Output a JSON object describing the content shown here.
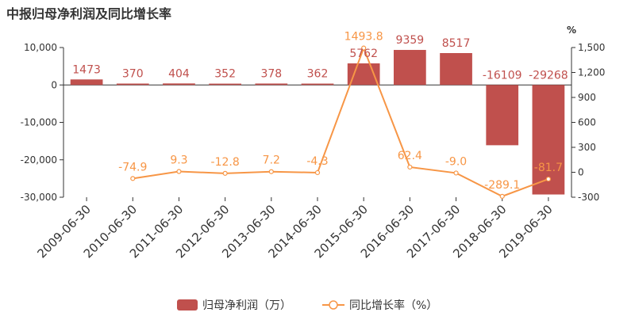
{
  "chart_data": {
    "type": "bar",
    "title": "中报归母净利润及同比增长率",
    "categories": [
      "2009-06-30",
      "2010-06-30",
      "2011-06-30",
      "2012-06-30",
      "2013-06-30",
      "2014-06-30",
      "2015-06-30",
      "2016-06-30",
      "2017-06-30",
      "2018-06-30",
      "2019-06-30"
    ],
    "series": [
      {
        "name": "归母净利润（万）",
        "type": "bar",
        "axis": "left",
        "values": [
          1473,
          370,
          404,
          352,
          378,
          362,
          5762,
          9359,
          8517,
          -16109,
          -29268
        ],
        "labels": [
          "1473",
          "370",
          "404",
          "352",
          "378",
          "362",
          "5762",
          "9359",
          "8517",
          "-16109",
          "-29268"
        ],
        "color": "#c0504d"
      },
      {
        "name": "同比增长率（%）",
        "type": "line",
        "axis": "right",
        "values": [
          null,
          -74.9,
          9.3,
          -12.8,
          7.2,
          -4.3,
          1493.8,
          62.4,
          -9.0,
          -289.1,
          -81.7
        ],
        "labels": [
          "",
          "-74.9",
          "9.3",
          "-12.8",
          "7.2",
          "-4.3",
          "1493.8",
          "62.4",
          "-9.0",
          "-289.1",
          "-81.7"
        ],
        "color": "#f79646"
      }
    ],
    "y_left": {
      "min": -30000,
      "max": 10000,
      "ticks": [
        10000,
        0,
        -10000,
        -20000,
        -30000
      ],
      "tick_labels": [
        "10,000",
        "0",
        "-10,000",
        "-20,000",
        "-30,000"
      ]
    },
    "y_right": {
      "min": -300,
      "max": 1500,
      "unit": "%",
      "ticks": [
        1500,
        1200,
        900,
        600,
        300,
        0,
        -300
      ],
      "tick_labels": [
        "1,500",
        "1,200",
        "900",
        "600",
        "300",
        "0",
        "-300"
      ]
    },
    "legend_position": "bottom-center",
    "grid": false
  }
}
